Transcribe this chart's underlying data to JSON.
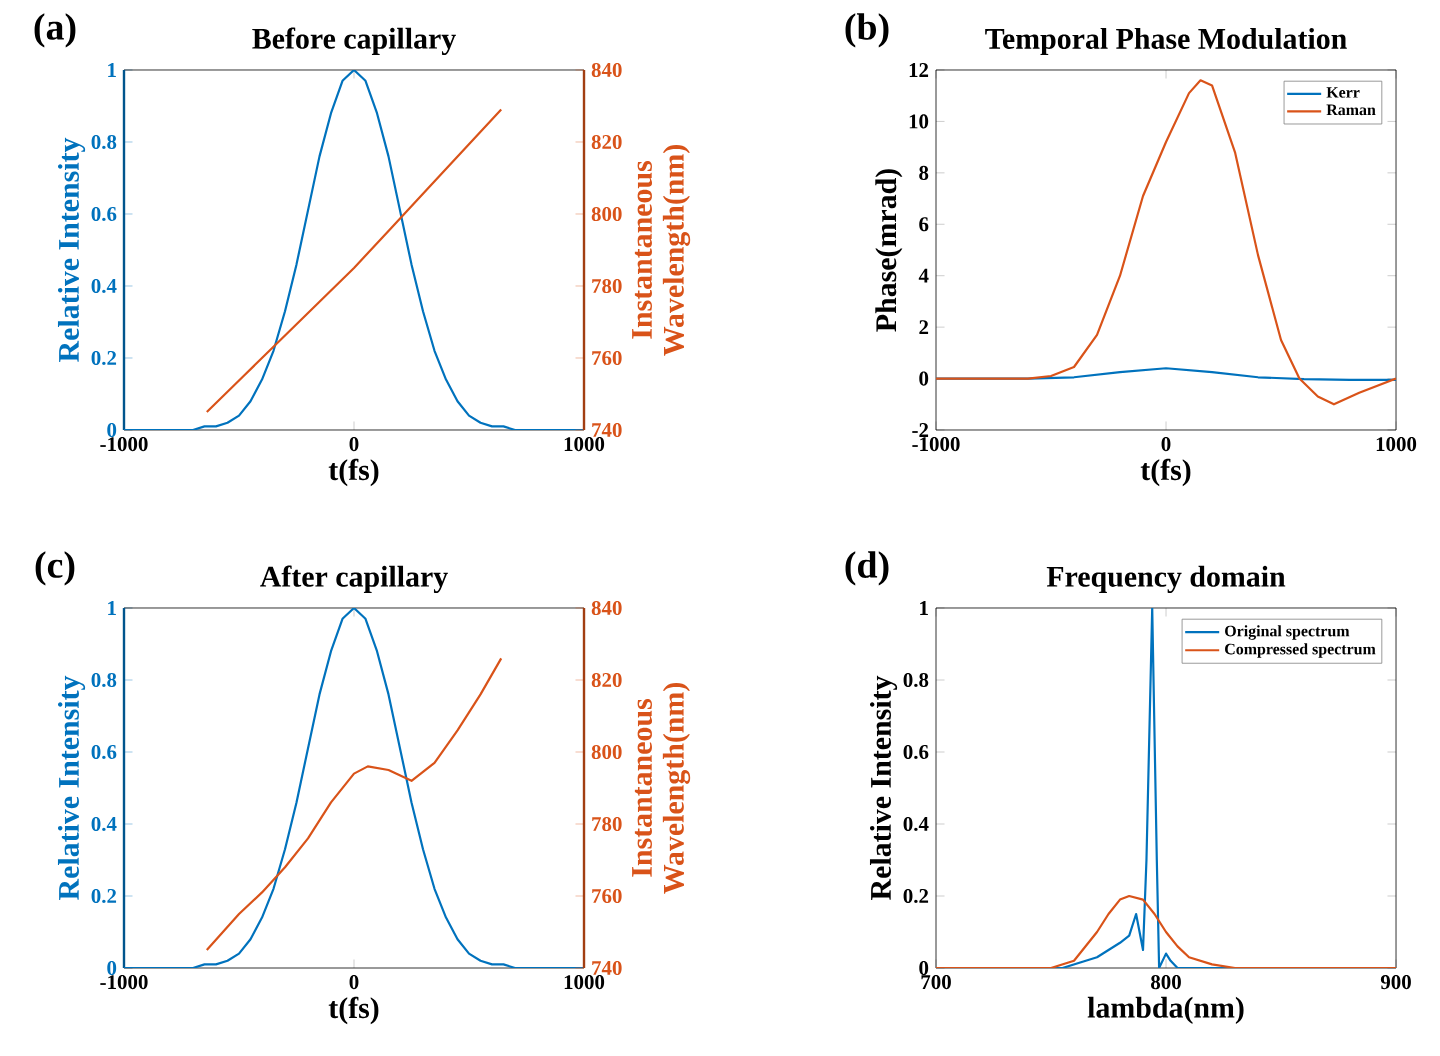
{
  "chart_data": [
    {
      "type": "line",
      "title": "Before capillary",
      "annotations": [
        "(a)"
      ],
      "xlabel": "t(fs)",
      "ylabel": "Relative Intensity",
      "y2label": "Instantaneous Wavelength(nm)",
      "xlim": [
        -1000,
        1000
      ],
      "xticks": [
        -1000,
        0,
        1000
      ],
      "ylim": [
        0,
        1
      ],
      "yticks": [
        0,
        0.2,
        0.4,
        0.6,
        0.8,
        1
      ],
      "y2lim": [
        740,
        840
      ],
      "y2ticks": [
        740,
        760,
        780,
        800,
        820,
        840
      ],
      "series": [
        {
          "color": "#0072bd",
          "x": [
            -1000,
            -800,
            -700,
            -650,
            -600,
            -550,
            -500,
            -450,
            -400,
            -350,
            -300,
            -250,
            -200,
            -150,
            -100,
            -50,
            0,
            50,
            100,
            150,
            200,
            250,
            300,
            350,
            400,
            450,
            500,
            550,
            600,
            650,
            700,
            800,
            1000
          ],
          "values": [
            0,
            0,
            0,
            0.01,
            0.01,
            0.02,
            0.04,
            0.08,
            0.14,
            0.22,
            0.33,
            0.46,
            0.61,
            0.76,
            0.88,
            0.97,
            1,
            0.97,
            0.88,
            0.76,
            0.61,
            0.46,
            0.33,
            0.22,
            0.14,
            0.08,
            0.04,
            0.02,
            0.01,
            0.01,
            0,
            0,
            0
          ]
        },
        {
          "color": "#d95319",
          "axis": "y2",
          "x": [
            -640,
            -480,
            -320,
            -160,
            0,
            160,
            320,
            480,
            640
          ],
          "values": [
            745,
            755,
            765,
            775,
            785,
            796,
            807,
            818,
            829
          ]
        }
      ]
    },
    {
      "type": "line",
      "title": "Temporal Phase Modulation",
      "annotations": [
        "(b)"
      ],
      "xlabel": "t(fs)",
      "ylabel": "Phase(mrad)",
      "legend": "top right",
      "xlim": [
        -1000,
        1000
      ],
      "xticks": [
        -1000,
        0,
        1000
      ],
      "ylim": [
        -2,
        12
      ],
      "yticks": [
        -2,
        0,
        2,
        4,
        6,
        8,
        10,
        12
      ],
      "series": [
        {
          "name": "Kerr",
          "color": "#0072bd",
          "x": [
            -1000,
            -600,
            -400,
            -200,
            0,
            200,
            400,
            600,
            800,
            1000
          ],
          "values": [
            0,
            0,
            0.05,
            0.25,
            0.4,
            0.25,
            0.05,
            -0.02,
            -0.05,
            -0.05
          ]
        },
        {
          "name": "Raman",
          "color": "#d95319",
          "x": [
            -1000,
            -800,
            -600,
            -500,
            -400,
            -300,
            -200,
            -100,
            0,
            100,
            150,
            200,
            300,
            400,
            500,
            580,
            660,
            730,
            840,
            1000
          ],
          "values": [
            0,
            0,
            0,
            0.1,
            0.45,
            1.7,
            4.0,
            7.1,
            9.2,
            11.1,
            11.6,
            11.4,
            8.8,
            4.8,
            1.5,
            0,
            -0.7,
            -1.0,
            -0.55,
            0
          ]
        }
      ]
    },
    {
      "type": "line",
      "title": "After capillary",
      "annotations": [
        "(c)"
      ],
      "xlabel": "t(fs)",
      "ylabel": "Relative Intensity",
      "y2label": "Instantaneous Wavelength(nm)",
      "xlim": [
        -1000,
        1000
      ],
      "xticks": [
        -1000,
        0,
        1000
      ],
      "ylim": [
        0,
        1
      ],
      "yticks": [
        0,
        0.2,
        0.4,
        0.6,
        0.8,
        1
      ],
      "y2lim": [
        740,
        840
      ],
      "y2ticks": [
        740,
        760,
        780,
        800,
        820,
        840
      ],
      "series": [
        {
          "color": "#0072bd",
          "x": [
            -1000,
            -800,
            -700,
            -650,
            -600,
            -550,
            -500,
            -450,
            -400,
            -350,
            -300,
            -250,
            -200,
            -150,
            -100,
            -50,
            0,
            50,
            100,
            150,
            200,
            250,
            300,
            350,
            400,
            450,
            500,
            550,
            600,
            650,
            700,
            800,
            1000
          ],
          "values": [
            0,
            0,
            0,
            0.01,
            0.01,
            0.02,
            0.04,
            0.08,
            0.14,
            0.22,
            0.33,
            0.46,
            0.61,
            0.76,
            0.88,
            0.97,
            1,
            0.97,
            0.88,
            0.76,
            0.61,
            0.46,
            0.33,
            0.22,
            0.14,
            0.08,
            0.04,
            0.02,
            0.01,
            0.01,
            0,
            0,
            0
          ]
        },
        {
          "color": "#d95319",
          "axis": "y2",
          "x": [
            -640,
            -500,
            -400,
            -300,
            -200,
            -100,
            0,
            60,
            150,
            250,
            350,
            450,
            550,
            640
          ],
          "values": [
            745,
            755,
            761,
            768,
            776,
            786,
            794,
            796,
            795,
            792,
            797,
            806,
            816,
            826
          ]
        }
      ]
    },
    {
      "type": "line",
      "title": "Frequency domain",
      "annotations": [
        "(d)"
      ],
      "xlabel": "lambda(nm)",
      "ylabel": "Relative Intensity",
      "legend": "top right",
      "xlim": [
        700,
        900
      ],
      "xticks": [
        700,
        800,
        900
      ],
      "ylim": [
        0,
        1
      ],
      "yticks": [
        0,
        0.2,
        0.4,
        0.6,
        0.8,
        1
      ],
      "series": [
        {
          "name": "Original spectrum",
          "color": "#0072bd",
          "x": [
            700,
            750,
            755,
            770,
            780,
            784,
            787,
            788.5,
            790,
            791.5,
            794,
            796,
            797,
            800,
            802,
            805,
            850,
            900
          ],
          "values": [
            0,
            0,
            0,
            0.03,
            0.07,
            0.09,
            0.15,
            0.1,
            0.05,
            0.3,
            1,
            0.3,
            0,
            0.04,
            0.02,
            0,
            0,
            0
          ]
        },
        {
          "name": "Compressed spectrum",
          "color": "#d95319",
          "x": [
            700,
            750,
            760,
            770,
            775,
            780,
            784,
            790,
            795,
            800,
            805,
            810,
            820,
            830,
            900
          ],
          "values": [
            0,
            0,
            0.02,
            0.1,
            0.15,
            0.19,
            0.2,
            0.19,
            0.15,
            0.1,
            0.06,
            0.03,
            0.01,
            0,
            0
          ]
        }
      ]
    }
  ]
}
